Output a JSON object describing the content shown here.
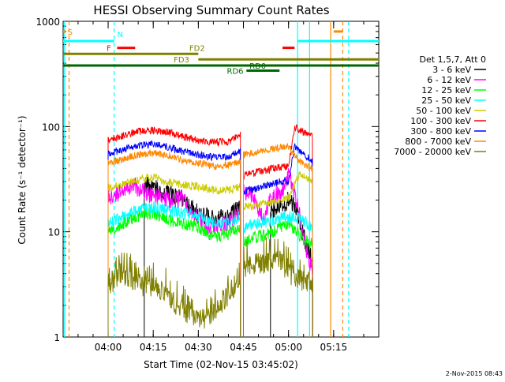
{
  "chart_data": {
    "type": "line",
    "title": "HESSI Observing Summary Count Rates",
    "xlabel": "Start Time (02-Nov-15 03:45:02)",
    "ylabel": "Count Rate (s⁻¹ detector⁻¹)",
    "y_scale": "log",
    "ylim": [
      1,
      1000
    ],
    "xlim": [
      "03:45:02",
      "05:30:00"
    ],
    "x_ticks": [
      "04:00",
      "04:15",
      "04:30",
      "04:45",
      "05:00",
      "05:15"
    ],
    "y_ticks": [
      1,
      10,
      100,
      1000
    ],
    "footer": "2-Nov-2015 08:43",
    "legend_title": "Det 1,5,7, Att 0",
    "legend_position": "right",
    "series": [
      {
        "name": "3 - 6 keV",
        "color": "#000000",
        "segments": [
          {
            "x": [
              "04:12",
              "04:18",
              "04:25",
              "04:30",
              "04:35",
              "04:40",
              "04:44"
            ],
            "y": [
              28,
              24,
              20,
              15,
              13,
              14,
              17
            ]
          },
          {
            "x": [
              "04:54",
              "04:58",
              "05:00",
              "05:02",
              "05:05",
              "05:08"
            ],
            "y": [
              16,
              18,
              20,
              17,
              9,
              5
            ]
          }
        ]
      },
      {
        "name": "6 - 12 keV",
        "color": "#ff00ff",
        "segments": [
          {
            "x": [
              "04:00",
              "04:03",
              "04:09",
              "04:15",
              "04:20",
              "04:25",
              "04:28",
              "04:32",
              "04:35",
              "04:40",
              "04:44"
            ],
            "y": [
              21,
              23,
              27,
              22,
              20,
              21,
              15,
              12,
              11,
              12,
              16
            ]
          },
          {
            "x": [
              "04:45",
              "04:48",
              "04:52",
              "04:54",
              "04:57",
              "05:00",
              "05:03",
              "05:05",
              "05:08"
            ],
            "y": [
              25,
              22,
              12,
              23,
              22,
              35,
              18,
              9,
              4
            ]
          }
        ]
      },
      {
        "name": "12 - 25 keV",
        "color": "#00ff00",
        "segments": [
          {
            "x": [
              "04:00",
              "04:05",
              "04:10",
              "04:15",
              "04:20",
              "04:25",
              "04:30",
              "04:35",
              "04:40",
              "04:44"
            ],
            "y": [
              10,
              12,
              14,
              15,
              13,
              12,
              11,
              9,
              9.5,
              11
            ]
          },
          {
            "x": [
              "04:45",
              "04:50",
              "04:55",
              "05:00",
              "05:04",
              "05:06",
              "05:08"
            ],
            "y": [
              8,
              9,
              10,
              12,
              9,
              8,
              7.5
            ]
          }
        ]
      },
      {
        "name": "25 - 50 keV",
        "color": "#00ffff",
        "segments": [
          {
            "x": [
              "04:00",
              "04:05",
              "04:10",
              "04:15",
              "04:20",
              "04:25",
              "04:30",
              "04:35",
              "04:40",
              "04:44"
            ],
            "y": [
              12,
              14,
              16,
              17,
              16,
              15,
              14,
              12,
              12,
              14
            ]
          },
          {
            "x": [
              "04:45",
              "04:50",
              "04:55",
              "05:00",
              "05:04",
              "05:06",
              "05:08"
            ],
            "y": [
              11,
              12,
              13,
              14,
              13,
              12,
              11
            ]
          }
        ]
      },
      {
        "name": "50 - 100 keV",
        "color": "#cccc00",
        "segments": [
          {
            "x": [
              "04:00",
              "04:05",
              "04:10",
              "04:15",
              "04:20",
              "04:25",
              "04:30",
              "04:35",
              "04:40",
              "04:44"
            ],
            "y": [
              26,
              28,
              31,
              33,
              30,
              28,
              27,
              25,
              25,
              27
            ]
          },
          {
            "x": [
              "04:45",
              "04:50",
              "04:55",
              "05:00",
              "05:04",
              "05:06",
              "05:08"
            ],
            "y": [
              17,
              18,
              19,
              21,
              36,
              33,
              30
            ]
          }
        ]
      },
      {
        "name": "100 - 300 keV",
        "color": "#ff0000",
        "segments": [
          {
            "x": [
              "04:00",
              "04:05",
              "04:10",
              "04:15",
              "04:20",
              "04:25",
              "04:30",
              "04:35",
              "04:40",
              "04:44"
            ],
            "y": [
              75,
              82,
              90,
              92,
              88,
              80,
              74,
              71,
              72,
              85
            ]
          },
          {
            "x": [
              "04:45",
              "04:50",
              "04:55",
              "05:00",
              "05:02",
              "05:04",
              "05:06",
              "05:08"
            ],
            "y": [
              34,
              37,
              40,
              42,
              100,
              90,
              85,
              80
            ]
          }
        ]
      },
      {
        "name": "300 - 800 keV",
        "color": "#0000ff",
        "segments": [
          {
            "x": [
              "04:00",
              "04:05",
              "04:10",
              "04:15",
              "04:20",
              "04:25",
              "04:30",
              "04:35",
              "04:40",
              "04:44"
            ],
            "y": [
              55,
              60,
              66,
              68,
              64,
              58,
              54,
              51,
              52,
              58
            ]
          },
          {
            "x": [
              "04:45",
              "04:50",
              "04:55",
              "05:00",
              "05:02",
              "05:04",
              "05:06",
              "05:08"
            ],
            "y": [
              24,
              26,
              29,
              31,
              64,
              58,
              52,
              47
            ]
          }
        ]
      },
      {
        "name": "800 - 7000 keV",
        "color": "#ff8800",
        "segments": [
          {
            "x": [
              "04:00",
              "04:05",
              "04:10",
              "04:15",
              "04:20",
              "04:25",
              "04:30",
              "04:35",
              "04:40",
              "04:44"
            ],
            "y": [
              45,
              49,
              54,
              56,
              53,
              48,
              45,
              42,
              43,
              47
            ]
          },
          {
            "x": [
              "04:45",
              "04:50",
              "04:55",
              "05:00",
              "05:02",
              "05:04",
              "05:06",
              "05:08"
            ],
            "y": [
              54,
              58,
              62,
              64,
              52,
              46,
              42,
              40
            ]
          }
        ]
      },
      {
        "name": "7000 - 20000 keV",
        "color": "#808000",
        "segments": [
          {
            "x": [
              "04:00",
              "04:04",
              "04:08",
              "04:12",
              "04:16",
              "04:20",
              "04:24",
              "04:28",
              "04:32",
              "04:36",
              "04:40",
              "04:44"
            ],
            "y": [
              3,
              4,
              3.5,
              3,
              3,
              2.5,
              1.8,
              1.6,
              1.5,
              1.8,
              2.5,
              3
            ]
          },
          {
            "x": [
              "04:45",
              "04:49",
              "04:53",
              "04:57",
              "05:00",
              "05:04",
              "05:06",
              "05:08"
            ],
            "y": [
              4.5,
              5,
              5,
              5.5,
              4,
              3.5,
              3.2,
              3
            ]
          }
        ]
      }
    ],
    "annotations": {
      "flag_labels": [
        "S",
        "N",
        "F",
        "FD2",
        "FD3",
        "RD0",
        "RD6"
      ],
      "flag_bars": [
        {
          "label": "S",
          "color": "#ff8800",
          "spans": [
            [
              "03:45:02",
              "03:46"
            ],
            [
              "05:15",
              "05:18"
            ]
          ],
          "y": 800
        },
        {
          "label": "N",
          "color": "#00ffff",
          "spans": [
            [
              "03:45:02",
              "04:02"
            ],
            [
              "05:03",
              "05:30"
            ]
          ],
          "y": 650
        },
        {
          "label": "F",
          "color": "#ff0000",
          "spans": [
            [
              "04:03",
              "04:09"
            ],
            [
              "04:58",
              "05:02"
            ]
          ],
          "y": 560
        },
        {
          "label": "FD2",
          "color": "#808000",
          "spans": [
            [
              "03:45:02",
              "04:30"
            ]
          ],
          "y": 490
        },
        {
          "label": "FD3",
          "color": "#808000",
          "spans": [
            [
              "04:30",
              "05:30"
            ]
          ],
          "y": 435
        },
        {
          "label": "RD0",
          "color": "#006600",
          "spans": [
            [
              "03:45:02",
              "05:30"
            ]
          ],
          "y": 380
        },
        {
          "label": "RD6",
          "color": "#006600",
          "spans": [
            [
              "04:46",
              "04:57"
            ]
          ],
          "y": 340
        }
      ],
      "vlines": [
        {
          "time": "03:45:30",
          "color": "#00ffff",
          "style": "solid"
        },
        {
          "time": "03:47",
          "color": "#ff8800",
          "style": "dashed"
        },
        {
          "time": "04:02",
          "color": "#00ffff",
          "style": "dashed"
        },
        {
          "time": "05:03",
          "color": "#00ffff",
          "style": "solid"
        },
        {
          "time": "05:07",
          "color": "#00ffff",
          "style": "solid"
        },
        {
          "time": "05:14",
          "color": "#ff8800",
          "style": "solid"
        },
        {
          "time": "05:18",
          "color": "#ff8800",
          "style": "dashed"
        },
        {
          "time": "05:20",
          "color": "#00ffff",
          "style": "dashed"
        }
      ]
    }
  }
}
